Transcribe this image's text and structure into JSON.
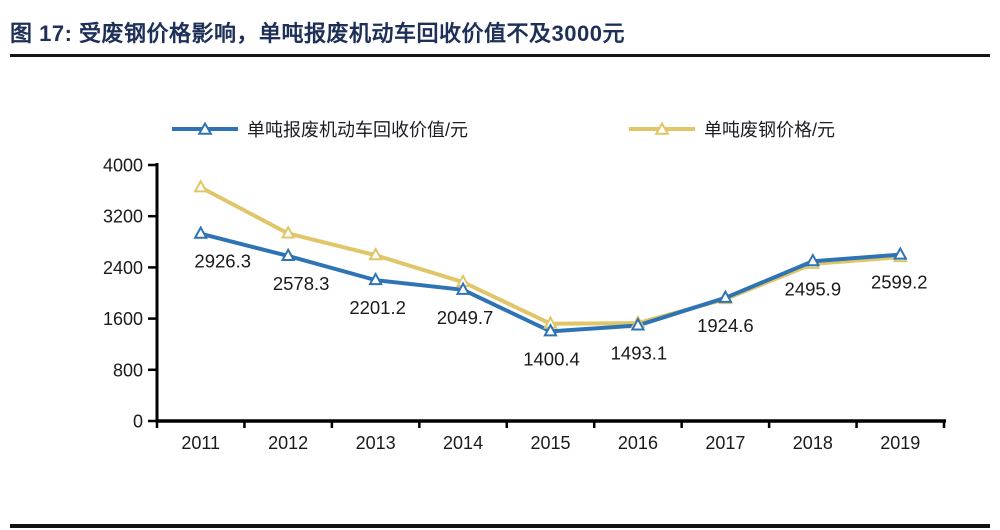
{
  "figure": {
    "title": "图 17: 受废钢价格影响，单吨报废机动车回收价值不及3000元"
  },
  "chart_data": {
    "type": "line",
    "title": "受废钢价格影响，单吨报废机动车回收价值不及3000元",
    "categories": [
      "2011",
      "2012",
      "2013",
      "2014",
      "2015",
      "2016",
      "2017",
      "2018",
      "2019"
    ],
    "series": [
      {
        "name": "单吨报废机动车回收价值/元",
        "color": "#2E74B5",
        "marker": "triangle",
        "data_labels": true,
        "values": [
          2926.3,
          2578.3,
          2201.2,
          2049.7,
          1400.4,
          1493.1,
          1924.6,
          2495.9,
          2599.2
        ]
      },
      {
        "name": "单吨废钢价格/元",
        "color": "#E0C668",
        "marker": "triangle",
        "data_labels": false,
        "values": [
          3650,
          2930,
          2590,
          2170,
          1520,
          1530,
          1905,
          2455,
          2560
        ]
      }
    ],
    "xlabel": "",
    "ylabel": "",
    "ylim": [
      0,
      4000
    ],
    "yticks": [
      0,
      800,
      1600,
      2400,
      3200,
      4000
    ],
    "grid": false,
    "legend_position": "top",
    "axis_color": "#000000",
    "label_color": "#1a1a1a"
  }
}
